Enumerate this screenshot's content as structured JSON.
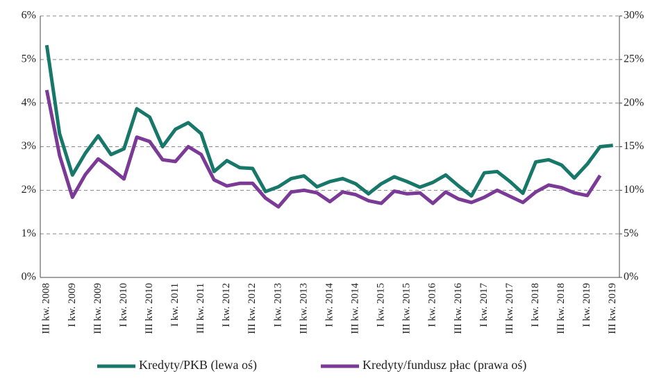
{
  "chart_data": {
    "type": "line",
    "categories": [
      "III kw. 2008",
      null,
      "I kw. 2009",
      null,
      "III kw. 2009",
      null,
      "I kw. 2010",
      null,
      "III kw. 2010",
      null,
      "I kw. 2011",
      null,
      "III kw. 2011",
      null,
      "I kw. 2012",
      null,
      "III kw. 2012",
      null,
      "I kw. 2013",
      null,
      "III kw. 2013",
      null,
      "I kw. 2014",
      null,
      "III kw. 2014",
      null,
      "I kw. 2015",
      null,
      "III kw. 2015",
      null,
      "I kw. 2016",
      null,
      "III kw. 2016",
      null,
      "I kw. 2017",
      null,
      "III kw. 2017",
      null,
      "I kw. 2018",
      null,
      "III kw. 2018",
      null,
      "I kw. 2019",
      null,
      "III kw. 2019"
    ],
    "series": [
      {
        "name": "Kredyty/PKB (lewa oś)",
        "color": "#17786a",
        "values": [
          5.33,
          3.3,
          2.35,
          2.85,
          3.25,
          2.82,
          2.95,
          3.87,
          3.68,
          3.0,
          3.4,
          3.55,
          3.3,
          2.43,
          2.68,
          2.52,
          2.5,
          1.97,
          2.08,
          2.27,
          2.33,
          2.08,
          2.2,
          2.27,
          2.15,
          1.92,
          2.15,
          2.31,
          2.2,
          2.07,
          2.18,
          2.35,
          2.1,
          1.87,
          2.4,
          2.43,
          2.2,
          1.93,
          2.65,
          2.7,
          2.58,
          2.28,
          2.6,
          3.0,
          3.03
        ]
      },
      {
        "name": "Kredyty/fundusz płac (prawa oś)",
        "color": "#7b3a96",
        "axis": "y2",
        "values": [
          21.5,
          14,
          9.2,
          11.8,
          13.6,
          12.5,
          11.3,
          16.1,
          15.6,
          13.5,
          13.3,
          15,
          14.1,
          11.2,
          10.5,
          10.8,
          10.8,
          9.1,
          8.1,
          9.8,
          10,
          9.7,
          8.7,
          9.8,
          9.5,
          8.8,
          8.5,
          9.9,
          9.6,
          9.7,
          8.5,
          9.8,
          9,
          8.6,
          9.2,
          10,
          9.3,
          8.6,
          9.8,
          10.6,
          10.3,
          9.7,
          9.4,
          11.7,
          null
        ]
      }
    ],
    "ylim": [
      0,
      6
    ],
    "yticks": [
      {
        "value": 0,
        "label": "0%"
      },
      {
        "value": 1,
        "label": "1%"
      },
      {
        "value": 2,
        "label": "2%"
      },
      {
        "value": 3,
        "label": "3%"
      },
      {
        "value": 4,
        "label": "4%"
      },
      {
        "value": 5,
        "label": "5%"
      },
      {
        "value": 6,
        "label": "6%"
      }
    ],
    "y2lim": [
      0,
      30
    ],
    "y2ticks": [
      {
        "value": 0,
        "label": "0%"
      },
      {
        "value": 5,
        "label": "5%"
      },
      {
        "value": 10,
        "label": "10%"
      },
      {
        "value": 15,
        "label": "15%"
      },
      {
        "value": 20,
        "label": "20%"
      },
      {
        "value": 25,
        "label": "25%"
      },
      {
        "value": 30,
        "label": "30%"
      }
    ],
    "grid": true,
    "legend": "bottom"
  }
}
